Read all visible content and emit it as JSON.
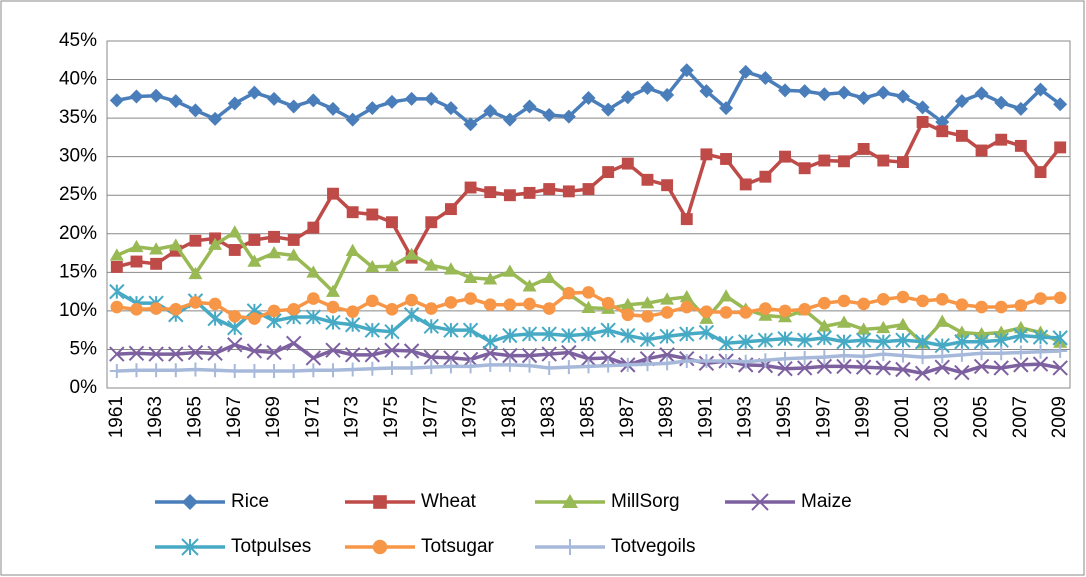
{
  "chart_data": {
    "type": "line",
    "categories": [
      "1961",
      null,
      "1963",
      null,
      "1965",
      null,
      "1967",
      null,
      "1969",
      null,
      "1971",
      null,
      "1973",
      null,
      "1975",
      null,
      "1977",
      null,
      "1979",
      null,
      "1981",
      null,
      "1983",
      null,
      "1985",
      null,
      "1987",
      null,
      "1989",
      null,
      "1991",
      null,
      "1993",
      null,
      "1995",
      null,
      "1997",
      null,
      "1999",
      null,
      "2001",
      null,
      "2003",
      null,
      "2005",
      null,
      "2007",
      null,
      "2009"
    ],
    "series": [
      {
        "name": "Rice",
        "color": "#4a7ebb",
        "marker": "diamond",
        "values": [
          37.3,
          37.8,
          37.9,
          37.2,
          36,
          34.9,
          36.9,
          38.3,
          37.5,
          36.5,
          37.3,
          36.2,
          34.8,
          36.3,
          37.1,
          37.5,
          37.5,
          36.3,
          34.2,
          35.9,
          34.8,
          36.5,
          35.4,
          35.2,
          37.6,
          36.1,
          37.7,
          38.9,
          38,
          41.2,
          38.5,
          36.3,
          41,
          40.2,
          38.6,
          38.5,
          38.1,
          38.3,
          37.6,
          38.3,
          37.8,
          36.4,
          34.5,
          37.2,
          38.2,
          37,
          36.2,
          38.7,
          36.8
        ]
      },
      {
        "name": "Wheat",
        "color": "#be4b48",
        "marker": "square",
        "values": [
          15.7,
          16.4,
          16.1,
          17.8,
          19.1,
          19.4,
          17.9,
          19.2,
          19.6,
          19.2,
          20.8,
          25.2,
          22.8,
          22.5,
          21.5,
          16.9,
          21.5,
          23.2,
          26,
          25.4,
          25,
          25.3,
          25.8,
          25.5,
          25.8,
          28,
          29.1,
          27,
          26.3,
          21.9,
          30.3,
          29.7,
          26.4,
          27.4,
          30,
          28.5,
          29.5,
          29.4,
          31,
          29.5,
          29.3,
          34.5,
          33.3,
          32.7,
          30.8,
          32.2,
          31.4,
          28,
          31.2
        ]
      },
      {
        "name": "MillSorg",
        "color": "#98b954",
        "marker": "triangle",
        "values": [
          17.2,
          18.3,
          18,
          18.5,
          14.8,
          18.6,
          20.2,
          16.4,
          17.5,
          17.2,
          15,
          12.5,
          17.8,
          15.7,
          15.8,
          17.3,
          15.9,
          15.4,
          14.3,
          14.1,
          15.1,
          13.2,
          14.3,
          12.2,
          10.4,
          10.3,
          10.8,
          11,
          11.5,
          11.8,
          9,
          11.9,
          10.2,
          9.4,
          9.2,
          10.1,
          8,
          8.5,
          7.6,
          7.8,
          8.2,
          5.8,
          8.6,
          7.2,
          7,
          7.2,
          7.8,
          7.2,
          5.9
        ]
      },
      {
        "name": "Maize",
        "color": "#7d60a0",
        "marker": "x",
        "values": [
          4.4,
          4.5,
          4.4,
          4.4,
          4.6,
          4.5,
          5.6,
          4.8,
          4.6,
          5.8,
          3.9,
          4.9,
          4.3,
          4.3,
          4.9,
          4.8,
          4,
          3.9,
          3.7,
          4.5,
          4.2,
          4.2,
          4.4,
          4.6,
          3.8,
          3.9,
          3,
          3.8,
          4.3,
          3.8,
          3.2,
          3.5,
          3,
          2.9,
          2.5,
          2.6,
          2.8,
          2.8,
          2.7,
          2.6,
          2.4,
          1.9,
          2.7,
          2,
          2.8,
          2.6,
          3,
          3.1,
          2.6
        ]
      },
      {
        "name": "Totpulses",
        "color": "#46aac5",
        "marker": "star",
        "values": [
          12.5,
          11,
          11,
          9.5,
          11.3,
          9,
          7.8,
          10,
          8.7,
          9.2,
          9.2,
          8.5,
          8.2,
          7.5,
          7.3,
          9.5,
          8,
          7.5,
          7.5,
          6,
          6.8,
          7,
          7,
          6.8,
          7,
          7.5,
          6.8,
          6.3,
          6.7,
          7,
          7.2,
          5.8,
          6,
          6.2,
          6.4,
          6.2,
          6.5,
          6,
          6.2,
          6,
          6.2,
          6,
          5.5,
          6,
          6,
          6.2,
          6.8,
          6.6,
          6.5
        ]
      },
      {
        "name": "Totsugar",
        "color": "#f79646",
        "marker": "circle",
        "values": [
          10.5,
          10.2,
          10.3,
          10.2,
          11.1,
          10.9,
          9.3,
          9,
          10,
          10.2,
          11.6,
          10.5,
          9.9,
          11.3,
          10.2,
          11.4,
          10.3,
          11.1,
          11.6,
          10.8,
          10.8,
          10.9,
          10.3,
          12.3,
          12.4,
          11,
          9.5,
          9.3,
          9.8,
          10.5,
          9.9,
          9.8,
          9.8,
          10.3,
          10,
          10.2,
          11,
          11.3,
          10.9,
          11.5,
          11.8,
          11.3,
          11.5,
          10.8,
          10.5,
          10.5,
          10.7,
          11.6,
          11.7
        ]
      },
      {
        "name": "Totvegoils",
        "color": "#a6b9da",
        "marker": "plus",
        "values": [
          2.2,
          2.3,
          2.3,
          2.3,
          2.4,
          2.3,
          2.2,
          2.2,
          2.2,
          2.2,
          2.3,
          2.3,
          2.4,
          2.5,
          2.6,
          2.6,
          2.7,
          2.8,
          2.8,
          3,
          3,
          2.9,
          2.6,
          2.7,
          2.8,
          2.9,
          3,
          3.1,
          3.2,
          3.5,
          3.5,
          3.5,
          3.4,
          3.6,
          3.8,
          3.9,
          4,
          4.2,
          4.1,
          4.4,
          4.2,
          4,
          4.1,
          4.3,
          4.5,
          4.5,
          4.6,
          4.7,
          4.8
        ]
      }
    ],
    "ylim": [
      0,
      45
    ],
    "yticks": [
      {
        "value": 0,
        "label": "0%"
      },
      {
        "value": 5,
        "label": "5%"
      },
      {
        "value": 10,
        "label": "10%"
      },
      {
        "value": 15,
        "label": "15%"
      },
      {
        "value": 20,
        "label": "20%"
      },
      {
        "value": 25,
        "label": "25%"
      },
      {
        "value": 30,
        "label": "30%"
      },
      {
        "value": 35,
        "label": "35%"
      },
      {
        "value": 40,
        "label": "40%"
      },
      {
        "value": 45,
        "label": "45%"
      }
    ],
    "grid": true,
    "legend": "bottom"
  }
}
